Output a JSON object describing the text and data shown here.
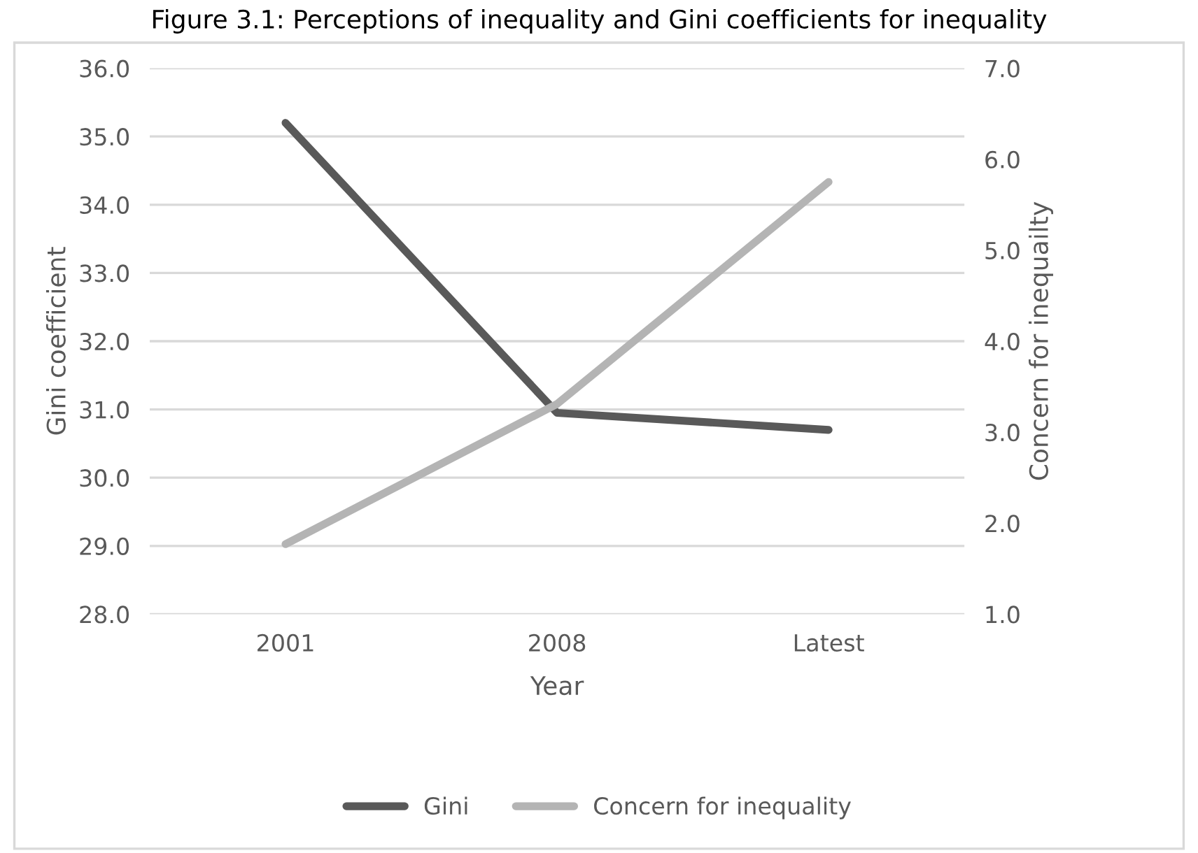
{
  "chart_data": {
    "type": "line",
    "title": "Figure 3.1: Perceptions of inequality and Gini coefficients for inequality",
    "xlabel": "Year",
    "ylabel": "Gini coefficient",
    "y2label": "Concern for inequailty",
    "categories": [
      "2001",
      "2008",
      "Latest"
    ],
    "series": [
      {
        "name": "Gini",
        "color": "#595959",
        "values": [
          35.2,
          30.95,
          30.7
        ]
      },
      {
        "name": "Concern for inequality",
        "color": "#b4b4b4",
        "axis": "y2",
        "values": [
          1.77,
          3.31,
          5.75
        ]
      }
    ],
    "ylim": [
      28,
      36
    ],
    "yticks": [
      {
        "value": 28,
        "label": "28.0"
      },
      {
        "value": 29,
        "label": "29.0"
      },
      {
        "value": 30,
        "label": "30.0"
      },
      {
        "value": 31,
        "label": "31.0"
      },
      {
        "value": 32,
        "label": "32.0"
      },
      {
        "value": 33,
        "label": "33.0"
      },
      {
        "value": 34,
        "label": "34.0"
      },
      {
        "value": 35,
        "label": "35.0"
      },
      {
        "value": 36,
        "label": "36.0"
      }
    ],
    "y2lim": [
      1,
      7
    ],
    "y2ticks": [
      {
        "value": 1,
        "label": "1.0"
      },
      {
        "value": 2,
        "label": "2.0"
      },
      {
        "value": 3,
        "label": "3.0"
      },
      {
        "value": 4,
        "label": "4.0"
      },
      {
        "value": 5,
        "label": "5.0"
      },
      {
        "value": 6,
        "label": "6.0"
      },
      {
        "value": 7,
        "label": "7.0"
      }
    ],
    "grid": "y",
    "legend": "bottom",
    "marker": "none",
    "line_style": "solid"
  }
}
